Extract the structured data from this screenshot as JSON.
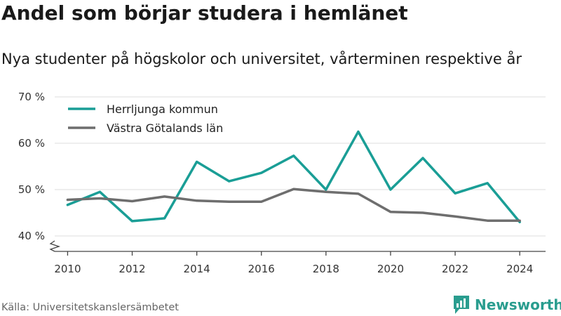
{
  "header": {
    "title": "Andel som börjar studera i hemlänet",
    "subtitle": "Nya studenter på högskolor och universitet, vårterminen respektive år"
  },
  "footer": {
    "source": "Källa: Universitetskanslersämbetet",
    "brand": "Newsworthy"
  },
  "colors": {
    "herrljunga": "#1a9e96",
    "vastra_gotaland": "#6e6e6e",
    "grid": "#dddddd",
    "axis": "#444444",
    "brand": "#2a9d8f"
  },
  "icons": {
    "brand": "bar-chart-badge-icon"
  },
  "chart_data": {
    "type": "line",
    "x": [
      2010,
      2011,
      2012,
      2013,
      2014,
      2015,
      2016,
      2017,
      2018,
      2019,
      2020,
      2021,
      2022,
      2023,
      2024
    ],
    "series": [
      {
        "name": "Herrljunga kommun",
        "values": [
          46.7,
          49.5,
          43.2,
          43.8,
          56.0,
          51.8,
          53.6,
          57.3,
          50.0,
          62.5,
          50.0,
          56.8,
          49.2,
          51.4,
          43.0
        ]
      },
      {
        "name": "Västra Götalands län",
        "values": [
          47.8,
          48.1,
          47.5,
          48.5,
          47.6,
          47.4,
          47.4,
          50.1,
          49.5,
          49.1,
          45.2,
          45.0,
          44.2,
          43.3,
          43.3
        ]
      }
    ],
    "ylim": [
      40,
      70
    ],
    "yticks": [
      40,
      50,
      60,
      70
    ],
    "ytick_labels": [
      "40 %",
      "50 %",
      "60 %",
      "70 %"
    ],
    "xticks": [
      2010,
      2012,
      2014,
      2016,
      2018,
      2020,
      2022,
      2024
    ],
    "xtick_labels": [
      "2010",
      "2012",
      "2014",
      "2016",
      "2018",
      "2020",
      "2022",
      "2024"
    ],
    "grid": true,
    "legend": "top-left",
    "axis_break": true
  }
}
